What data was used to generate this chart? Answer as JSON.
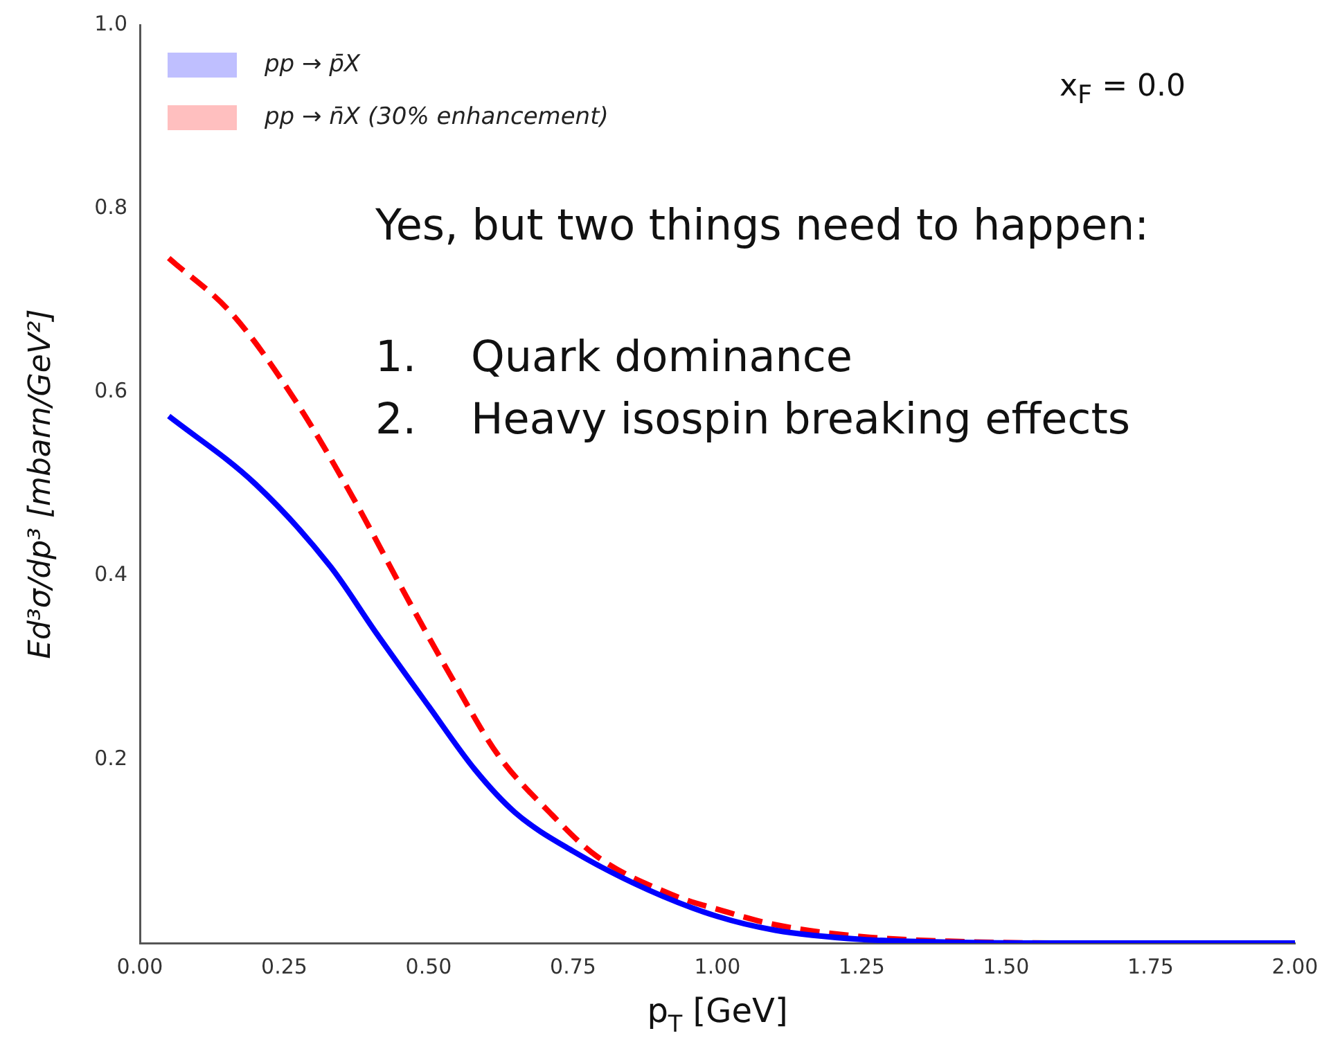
{
  "chart_data": {
    "type": "line",
    "xlabel": "p$_{T}$ [GeV]",
    "ylabel": "Ed³σ/dp³ [mbarn/GeV²]",
    "xlim": [
      0,
      2
    ],
    "xticks": [
      {
        "value": 0,
        "label": "0.00"
      },
      {
        "value": 0.25,
        "label": "0.25"
      },
      {
        "value": 0.5,
        "label": "0.50"
      },
      {
        "value": 0.75,
        "label": "0.75"
      },
      {
        "value": 1,
        "label": "1.00"
      },
      {
        "value": 1.25,
        "label": "1.25"
      },
      {
        "value": 1.5,
        "label": "1.50"
      },
      {
        "value": 1.75,
        "label": "1.75"
      },
      {
        "value": 2,
        "label": "2.00"
      }
    ],
    "ylim": [
      0,
      1
    ],
    "yticks": [
      {
        "value": 0.2,
        "label": "0.2"
      },
      {
        "value": 0.4,
        "label": "0.4"
      },
      {
        "value": 0.6,
        "label": "0.6"
      },
      {
        "value": 0.8,
        "label": "0.8"
      },
      {
        "value": 1,
        "label": "1.0"
      }
    ],
    "grid": false,
    "legend": "top left",
    "marker": "none",
    "series": [
      {
        "name": "pp → p̄X",
        "color": "#0000ff",
        "line_style": "solid",
        "x": [
          0.05,
          0.2,
          0.33,
          0.41,
          0.5,
          0.58,
          0.65,
          0.75,
          0.88,
          1.0,
          1.1,
          1.25,
          1.4,
          1.6,
          1.8,
          2.0
        ],
        "values": [
          0.574,
          0.5,
          0.41,
          0.337,
          0.258,
          0.189,
          0.142,
          0.1,
          0.058,
          0.029,
          0.014,
          0.004,
          0.001,
          0,
          0,
          0
        ]
      },
      {
        "name": "pp → n̄X (30% enhancement)",
        "color": "#ff0000",
        "line_style": "dashed",
        "x": [
          0.05,
          0.16,
          0.27,
          0.37,
          0.46,
          0.54,
          0.62,
          0.71,
          0.79,
          0.92,
          1.01,
          1.1,
          1.25,
          1.4,
          1.6,
          1.8,
          2.0
        ],
        "values": [
          0.746,
          0.685,
          0.59,
          0.484,
          0.379,
          0.289,
          0.205,
          0.142,
          0.095,
          0.053,
          0.035,
          0.02,
          0.007,
          0.002,
          0,
          0,
          0
        ]
      }
    ],
    "annotations": [
      "x$_{F}$ = 0.0",
      "Yes, but two things need to happen:",
      "1.    Quark dominance",
      "2.    Heavy isospin breaking effects"
    ]
  }
}
